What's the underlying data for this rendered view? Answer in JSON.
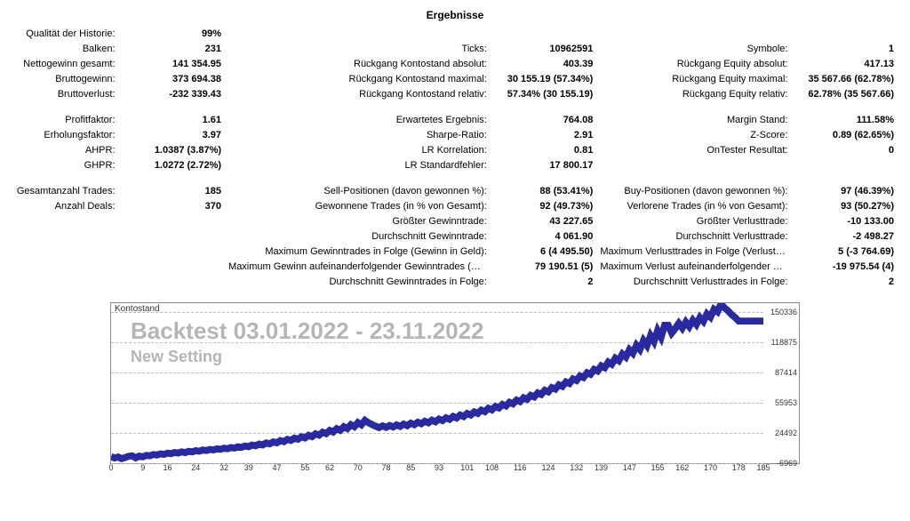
{
  "title": "Ergebnisse",
  "rows": [
    {
      "l1": "Qualität der Historie:",
      "v1": "99%",
      "l2": "",
      "v2": "",
      "l3": "",
      "v3": ""
    },
    {
      "l1": "Balken:",
      "v1": "231",
      "l2": "Ticks:",
      "v2": "10962591",
      "l3": "Symbole:",
      "v3": "1"
    },
    {
      "l1": "Nettogewinn gesamt:",
      "v1": "141 354.95",
      "l2": "Rückgang Kontostand absolut:",
      "v2": "403.39",
      "l3": "Rückgang Equity absolut:",
      "v3": "417.13"
    },
    {
      "l1": "Bruttogewinn:",
      "v1": "373 694.38",
      "l2": "Rückgang Kontostand maximal:",
      "v2": "30 155.19 (57.34%)",
      "l3": "Rückgang Equity maximal:",
      "v3": "35 567.66 (62.78%)"
    },
    {
      "l1": "Bruttoverlust:",
      "v1": "-232 339.43",
      "l2": "Rückgang Kontostand relativ:",
      "v2": "57.34% (30 155.19)",
      "l3": "Rückgang Equity relativ:",
      "v3": "62.78% (35 567.66)"
    },
    {
      "spacer": true
    },
    {
      "l1": "Profitfaktor:",
      "v1": "1.61",
      "l2": "Erwartetes Ergebnis:",
      "v2": "764.08",
      "l3": "Margin Stand:",
      "v3": "111.58%"
    },
    {
      "l1": "Erholungsfaktor:",
      "v1": "3.97",
      "l2": "Sharpe-Ratio:",
      "v2": "2.91",
      "l3": "Z-Score:",
      "v3": "0.89 (62.65%)"
    },
    {
      "l1": "AHPR:",
      "v1": "1.0387 (3.87%)",
      "l2": "LR Korrelation:",
      "v2": "0.81",
      "l3": "OnTester Resultat:",
      "v3": "0"
    },
    {
      "l1": "GHPR:",
      "v1": "1.0272 (2.72%)",
      "l2": "LR Standardfehler:",
      "v2": "17 800.17",
      "l3": "",
      "v3": ""
    },
    {
      "spacer": true
    },
    {
      "l1": "Gesamtanzahl Trades:",
      "v1": "185",
      "l2": "Sell-Positionen (davon gewonnen %):",
      "v2": "88 (53.41%)",
      "l3": "Buy-Positionen (davon gewonnen %):",
      "v3": "97 (46.39%)"
    },
    {
      "l1": "Anzahl Deals:",
      "v1": "370",
      "l2": "Gewonnene Trades (in % von Gesamt):",
      "v2": "92 (49.73%)",
      "l3": "Verlorene Trades (in % von Gesamt):",
      "v3": "93 (50.27%)"
    },
    {
      "l1": "",
      "v1": "",
      "l2": "Größter Gewinntrade:",
      "v2": "43 227.65",
      "l3": "Größter Verlusttrade:",
      "v3": "-10 133.00"
    },
    {
      "l1": "",
      "v1": "",
      "l2": "Durchschnitt Gewinntrade:",
      "v2": "4 061.90",
      "l3": "Durchschnitt Verlusttrade:",
      "v3": "-2 498.27"
    },
    {
      "l1": "",
      "v1": "",
      "l2": "Maximum Gewinntrades in Folge (Gewinn in Geld):",
      "v2": "6 (4 495.50)",
      "l3": "Maximum Verlusttrades in Folge (Verlust in Geld):",
      "v3": "5 (-3 764.69)"
    },
    {
      "l1": "",
      "v1": "",
      "l2": "Maximum Gewinn aufeinanderfolgender Gewinntrades (Anzahl):",
      "v2": "79 190.51 (5)",
      "l3": "Maximum Verlust aufeinanderfolgender Verlusttrades (Anzahl):",
      "v3": "-19 975.54 (4)"
    },
    {
      "l1": "",
      "v1": "",
      "l2": "Durchschnitt Gewinntrades in Folge:",
      "v2": "2",
      "l3": "Durchschnitt Verlusttrades in Folge:",
      "v3": "2"
    }
  ],
  "colWidths": [
    "12%",
    "12%",
    "30%",
    "12%",
    "22%",
    "12%"
  ],
  "chart": {
    "title": "Kontostand",
    "watermark_big": "Backtest 03.01.2022 - 23.11.2022",
    "watermark_small": "New Setting",
    "line_color": "#2a2aa0",
    "line_width": 1.4,
    "grid_color": "#bbbbbb",
    "y_min": -6969,
    "y_max": 160000,
    "y_labels": [
      -6969,
      24492,
      55953,
      87414,
      118875,
      150336
    ],
    "x_min": 0,
    "x_max": 185,
    "x_ticks": [
      0,
      9,
      16,
      24,
      32,
      39,
      47,
      55,
      62,
      70,
      78,
      85,
      93,
      101,
      108,
      116,
      124,
      132,
      139,
      147,
      155,
      162,
      170,
      178,
      185
    ],
    "equity": [
      0,
      -1500,
      -500,
      -2200,
      -1000,
      300,
      700,
      -1400,
      500,
      -300,
      1200,
      800,
      2100,
      1600,
      2800,
      2300,
      3500,
      3000,
      4200,
      3600,
      4800,
      4100,
      5400,
      4800,
      6100,
      5500,
      6800,
      6200,
      7400,
      6900,
      8000,
      7500,
      8700,
      8100,
      9400,
      8800,
      10200,
      9600,
      11000,
      10300,
      12000,
      11200,
      13000,
      12100,
      14100,
      13200,
      15300,
      14300,
      16600,
      15500,
      17900,
      16800,
      19200,
      18100,
      20600,
      19400,
      22100,
      20800,
      23700,
      22300,
      25400,
      23900,
      27200,
      25600,
      29100,
      27400,
      31100,
      29200,
      33200,
      31100,
      35400,
      33100,
      37700,
      35200,
      33400,
      31700,
      30200,
      32000,
      30400,
      32400,
      30800,
      33000,
      31400,
      33800,
      32200,
      34800,
      33200,
      35800,
      34200,
      36800,
      35200,
      37900,
      36300,
      39100,
      37500,
      40400,
      38800,
      41800,
      40200,
      43300,
      41700,
      44900,
      43300,
      46600,
      45000,
      48400,
      46800,
      50300,
      48700,
      52300,
      50700,
      54400,
      52800,
      56600,
      55000,
      58900,
      57300,
      61300,
      59700,
      63800,
      62200,
      66400,
      64800,
      69100,
      67500,
      71900,
      70300,
      74800,
      73200,
      77800,
      76200,
      80900,
      79300,
      84100,
      82500,
      87400,
      85800,
      90900,
      89200,
      94600,
      92700,
      98500,
      96300,
      102600,
      100000,
      106900,
      103800,
      111400,
      107700,
      116100,
      111700,
      121000,
      115800,
      126100,
      120000,
      131400,
      124400,
      136900,
      136900,
      128900,
      133500,
      139000,
      134000,
      140400,
      135600,
      142200,
      137800,
      145000,
      141000,
      148800,
      145400,
      153600,
      151000,
      159400,
      155000,
      152000,
      148000,
      145000,
      141354,
      141354,
      141354,
      141354,
      141354,
      141354,
      141354,
      141354
    ]
  }
}
